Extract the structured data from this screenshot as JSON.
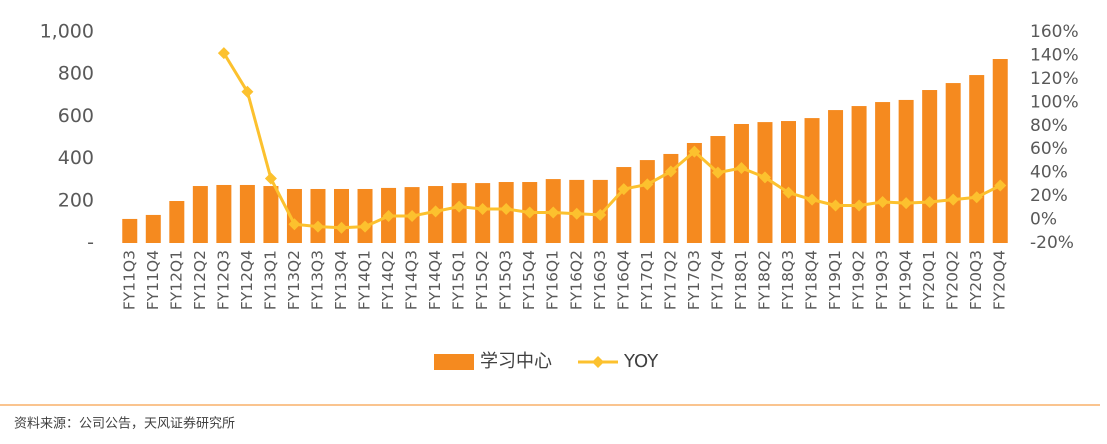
{
  "chart_data": {
    "type": "bar",
    "categories": [
      "FY11Q3",
      "FY11Q4",
      "FY12Q1",
      "FY12Q2",
      "FY12Q3",
      "FY12Q4",
      "FY13Q1",
      "FY13Q2",
      "FY13Q3",
      "FY13Q4",
      "FY14Q1",
      "FY14Q2",
      "FY14Q3",
      "FY14Q4",
      "FY15Q1",
      "FY15Q2",
      "FY15Q3",
      "FY15Q4",
      "FY16Q1",
      "FY16Q2",
      "FY16Q3",
      "FY16Q4",
      "FY17Q1",
      "FY17Q2",
      "FY17Q3",
      "FY17Q4",
      "FY18Q1",
      "FY18Q2",
      "FY18Q3",
      "FY18Q4",
      "FY19Q1",
      "FY19Q2",
      "FY19Q3",
      "FY19Q4",
      "FY20Q1",
      "FY20Q2",
      "FY20Q3",
      "FY20Q4"
    ],
    "series": [
      {
        "name": "学习中心",
        "type": "bar",
        "color": "#f58a1f",
        "values": [
          114,
          133,
          199,
          270,
          275,
          275,
          270,
          256,
          256,
          256,
          256,
          261,
          265,
          270,
          284,
          284,
          289,
          289,
          303,
          299,
          299,
          360,
          393,
          422,
          474,
          507,
          564,
          573,
          578,
          592,
          630,
          649,
          668,
          678,
          725,
          758,
          796,
          872
        ]
      },
      {
        "name": "YOY",
        "type": "line",
        "axis": "y2",
        "color": "#fcc12e",
        "values": [
          null,
          null,
          null,
          null,
          142,
          109,
          35,
          -4,
          -6,
          -7,
          -6,
          3,
          3,
          7,
          11,
          9,
          9,
          6,
          6,
          5,
          4,
          26,
          30,
          41,
          58,
          40,
          44,
          36,
          23,
          17,
          12,
          12,
          15,
          14,
          15,
          17,
          19,
          29
        ]
      }
    ],
    "ylim": [
      0,
      1000
    ],
    "yticks": [
      {
        "value": 0,
        "label": "-"
      },
      200,
      400,
      600,
      800,
      {
        "value": 1000,
        "label": "1,000"
      }
    ],
    "y2lim": [
      -20,
      160
    ],
    "y2ticks": [
      {
        "value": -20,
        "label": "-20%"
      },
      {
        "value": 0,
        "label": "0%"
      },
      {
        "value": 20,
        "label": "20%"
      },
      {
        "value": 40,
        "label": "40%"
      },
      {
        "value": 60,
        "label": "60%"
      },
      {
        "value": 80,
        "label": "80%"
      },
      {
        "value": 100,
        "label": "100%"
      },
      {
        "value": 120,
        "label": "120%"
      },
      {
        "value": 140,
        "label": "140%"
      },
      {
        "value": 160,
        "label": "160%"
      }
    ],
    "legend": "bottom",
    "source": "资料来源：公司公告，天风证券研究所"
  }
}
